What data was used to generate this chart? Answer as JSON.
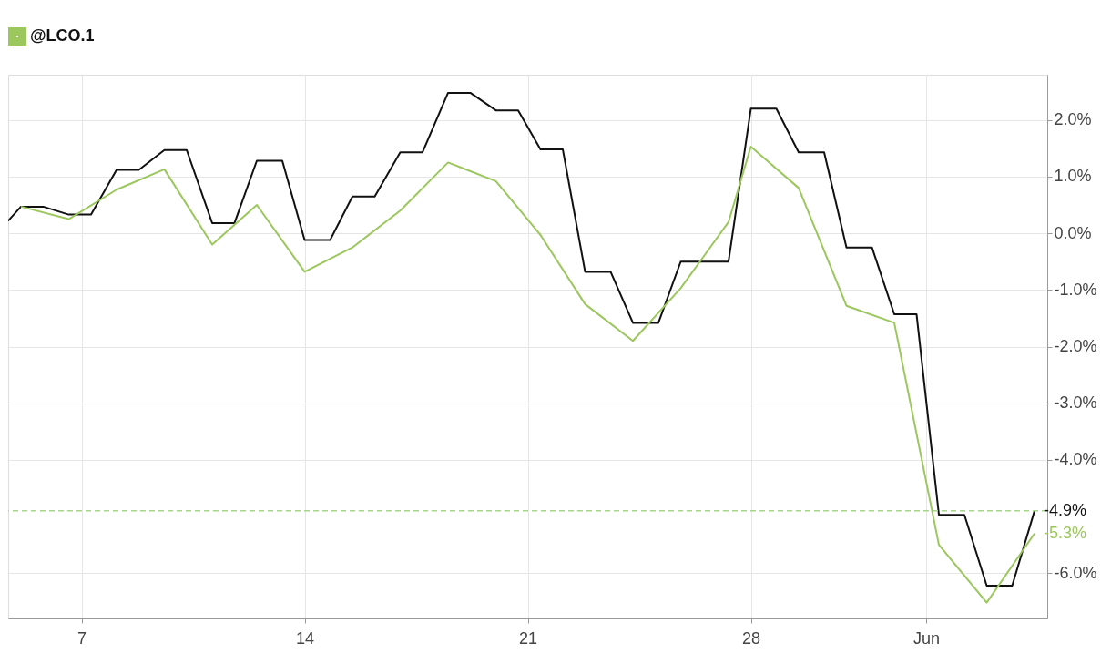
{
  "chart_data": {
    "type": "line",
    "series": [
      {
        "color": "#111111",
        "x": [
          4.7,
          5.1,
          5.8,
          6.6,
          7.3,
          8.1,
          8.8,
          9.6,
          10.3,
          11.1,
          11.8,
          12.5,
          13.3,
          14.0,
          14.8,
          15.5,
          16.2,
          17.0,
          17.7,
          18.5,
          19.2,
          20.0,
          20.7,
          21.4,
          22.1,
          22.8,
          23.6,
          24.3,
          25.1,
          25.8,
          27.3,
          28.0,
          28.8,
          29.5,
          30.3,
          31.0,
          31.8,
          32.5,
          33.2,
          33.9,
          34.7,
          35.4,
          36.2,
          36.9
        ],
        "values": [
          0.22,
          0.47,
          0.47,
          0.33,
          0.33,
          1.12,
          1.12,
          1.47,
          1.47,
          0.18,
          0.18,
          1.28,
          1.28,
          -0.12,
          -0.12,
          0.65,
          0.65,
          1.43,
          1.43,
          2.48,
          2.48,
          2.17,
          2.17,
          1.48,
          1.48,
          -0.68,
          -0.68,
          -1.58,
          -1.58,
          -0.5,
          -0.5,
          2.2,
          2.2,
          1.43,
          1.43,
          -0.25,
          -0.25,
          -1.43,
          -1.43,
          -4.97,
          -4.97,
          -6.22,
          -6.22,
          -4.9
        ]
      },
      {
        "name": "@LCO.1",
        "color": "#9bc75d",
        "x": [
          5.1,
          6.6,
          8.1,
          9.6,
          11.1,
          12.5,
          14.0,
          15.5,
          17.0,
          18.5,
          20.0,
          21.4,
          22.8,
          24.3,
          25.8,
          27.3,
          28.0,
          29.5,
          31.0,
          32.5,
          33.9,
          35.4,
          36.9
        ],
        "values": [
          0.47,
          0.25,
          0.77,
          1.13,
          -0.2,
          0.5,
          -0.68,
          -0.25,
          0.4,
          1.25,
          0.92,
          -0.03,
          -1.25,
          -1.9,
          -0.97,
          0.2,
          1.53,
          0.8,
          -1.28,
          -1.58,
          -5.5,
          -6.52,
          -5.3
        ]
      }
    ],
    "xlim": [
      4.7,
      37.3
    ],
    "xticks": [
      7,
      14,
      21,
      28,
      {
        "value": 33.5,
        "label": "Jun"
      }
    ],
    "ylim": [
      -6.8,
      2.8
    ],
    "yticks": [
      {
        "value": 2,
        "label": "2.0%"
      },
      {
        "value": 1,
        "label": "1.0%"
      },
      {
        "value": 0,
        "label": "0.0%"
      },
      {
        "value": -1,
        "label": "-1.0%"
      },
      {
        "value": -2,
        "label": "-2.0%"
      },
      {
        "value": -3,
        "label": "-3.0%"
      },
      {
        "value": -4,
        "label": "-4.0%"
      },
      {
        "value": -6,
        "label": "-6.0%"
      }
    ],
    "ref_lines": [
      {
        "axis": "y",
        "value": -4.9,
        "color": "#a5d68a",
        "line_style": "dashed"
      }
    ],
    "annotations": [
      {
        "text": "-4.9%",
        "x": 36.9,
        "y": -4.9
      },
      {
        "text": "-5.3%",
        "x": 36.9,
        "y": -5.3
      }
    ],
    "grid": true,
    "legend": "top left",
    "marker": "none",
    "line_style": "solid"
  }
}
